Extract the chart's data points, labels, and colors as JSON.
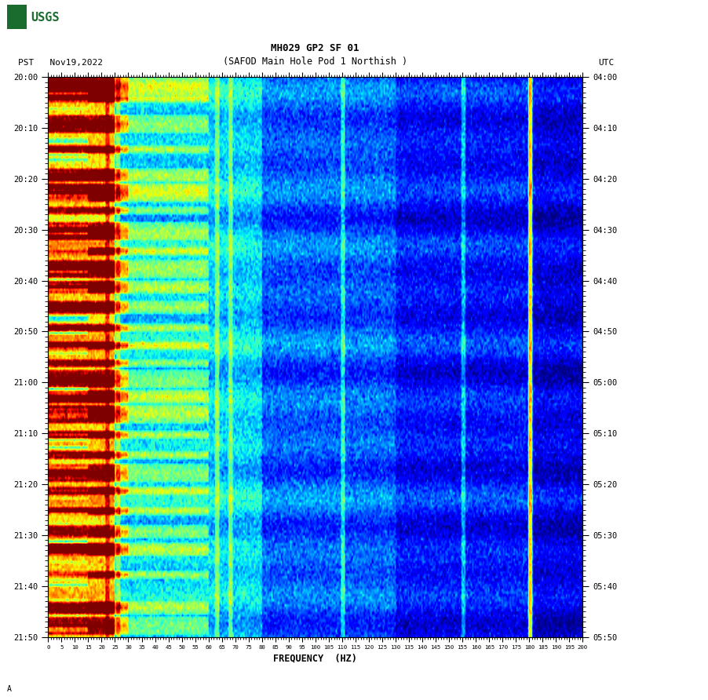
{
  "title_line1": "MH029 GP2 SF 01",
  "title_line2": "(SAFOD Main Hole Pod 1 Northish )",
  "date_label": "PST   Nov19,2022",
  "utc_label": "UTC",
  "xlabel": "FREQUENCY  (HZ)",
  "freq_min": 0,
  "freq_max": 200,
  "freq_ticks": [
    0,
    5,
    10,
    15,
    20,
    25,
    30,
    35,
    40,
    45,
    50,
    55,
    60,
    65,
    70,
    75,
    80,
    85,
    90,
    95,
    100,
    105,
    110,
    115,
    120,
    125,
    130,
    135,
    140,
    145,
    150,
    155,
    160,
    165,
    170,
    175,
    180,
    185,
    190,
    195,
    200
  ],
  "time_ticks_pst": [
    "20:00",
    "20:10",
    "20:20",
    "20:30",
    "20:40",
    "20:50",
    "21:00",
    "21:10",
    "21:20",
    "21:30",
    "21:40",
    "21:50"
  ],
  "time_ticks_utc": [
    "04:00",
    "04:10",
    "04:20",
    "04:30",
    "04:40",
    "04:50",
    "05:00",
    "05:10",
    "05:20",
    "05:30",
    "05:40",
    "05:50"
  ],
  "background_color": "#ffffff",
  "fig_width": 9.02,
  "fig_height": 8.92,
  "dpi": 100,
  "usgs_logo_color": "#1a6b2e",
  "n_time": 220,
  "n_freq": 400,
  "seed": 42
}
